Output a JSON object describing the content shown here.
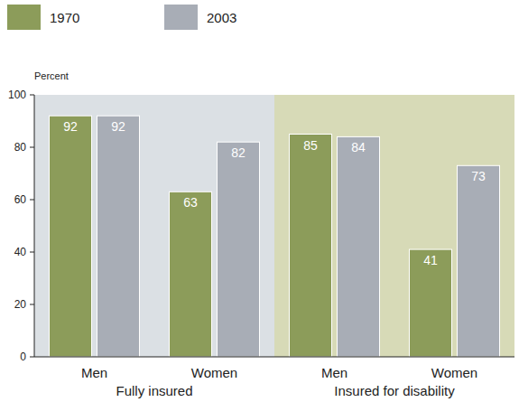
{
  "chart_data": {
    "type": "bar",
    "y_label": "Percent",
    "categories": [
      "Men",
      "Women",
      "Men",
      "Women"
    ],
    "category_groups": [
      "Fully insured",
      "Fully insured",
      "Insured for disability",
      "Insured for disability"
    ],
    "series": [
      {
        "name": "1970",
        "color": "#8c9c5a",
        "values": [
          92,
          63,
          85,
          41
        ]
      },
      {
        "name": "2003",
        "color": "#a8adb6",
        "values": [
          92,
          82,
          84,
          73
        ]
      }
    ],
    "ylim": [
      0,
      100
    ],
    "yticks": [
      0,
      20,
      40,
      60,
      80,
      100
    ],
    "grid": false,
    "legend": "top-left",
    "data_labels": true
  }
}
